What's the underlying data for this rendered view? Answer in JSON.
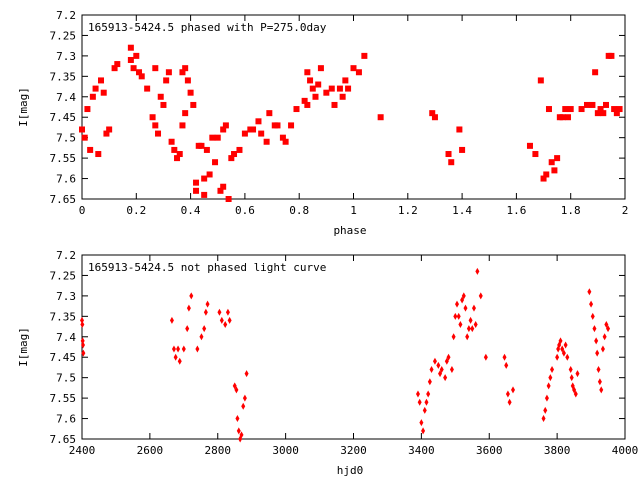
{
  "chart_data": [
    {
      "type": "scatter",
      "title": "165913-5424.5 phased with P=275.0day",
      "xlabel": "phase",
      "ylabel": "I[mag]",
      "xlim": [
        0,
        2
      ],
      "ylim": [
        7.2,
        7.65
      ],
      "y_inverted": true,
      "grid": false,
      "marker": "square",
      "color": "#ff0000",
      "xticks": [
        "0",
        "0.2",
        "0.4",
        "0.6",
        "0.8",
        "1",
        "1.2",
        "1.4",
        "1.6",
        "1.8",
        "2"
      ],
      "yticks": [
        "7.2",
        "7.25",
        "7.3",
        "7.35",
        "7.4",
        "7.45",
        "7.5",
        "7.55",
        "7.6",
        "7.65"
      ],
      "points": [
        [
          0.0,
          7.48
        ],
        [
          0.01,
          7.5
        ],
        [
          0.02,
          7.43
        ],
        [
          0.03,
          7.53
        ],
        [
          0.04,
          7.4
        ],
        [
          0.05,
          7.38
        ],
        [
          0.06,
          7.54
        ],
        [
          0.07,
          7.36
        ],
        [
          0.08,
          7.39
        ],
        [
          0.09,
          7.49
        ],
        [
          0.1,
          7.48
        ],
        [
          0.12,
          7.33
        ],
        [
          0.13,
          7.32
        ],
        [
          0.18,
          7.28
        ],
        [
          0.18,
          7.31
        ],
        [
          0.19,
          7.33
        ],
        [
          0.2,
          7.3
        ],
        [
          0.21,
          7.34
        ],
        [
          0.22,
          7.35
        ],
        [
          0.24,
          7.38
        ],
        [
          0.26,
          7.45
        ],
        [
          0.27,
          7.33
        ],
        [
          0.27,
          7.47
        ],
        [
          0.28,
          7.49
        ],
        [
          0.29,
          7.4
        ],
        [
          0.3,
          7.42
        ],
        [
          0.31,
          7.36
        ],
        [
          0.32,
          7.34
        ],
        [
          0.33,
          7.51
        ],
        [
          0.34,
          7.53
        ],
        [
          0.35,
          7.55
        ],
        [
          0.36,
          7.54
        ],
        [
          0.37,
          7.47
        ],
        [
          0.37,
          7.34
        ],
        [
          0.38,
          7.33
        ],
        [
          0.38,
          7.44
        ],
        [
          0.39,
          7.36
        ],
        [
          0.4,
          7.39
        ],
        [
          0.41,
          7.42
        ],
        [
          0.42,
          7.61
        ],
        [
          0.42,
          7.63
        ],
        [
          0.43,
          7.52
        ],
        [
          0.44,
          7.52
        ],
        [
          0.45,
          7.6
        ],
        [
          0.45,
          7.64
        ],
        [
          0.46,
          7.53
        ],
        [
          0.47,
          7.59
        ],
        [
          0.48,
          7.5
        ],
        [
          0.49,
          7.56
        ],
        [
          0.5,
          7.5
        ],
        [
          0.51,
          7.63
        ],
        [
          0.52,
          7.48
        ],
        [
          0.52,
          7.62
        ],
        [
          0.53,
          7.47
        ],
        [
          0.54,
          7.65
        ],
        [
          0.55,
          7.55
        ],
        [
          0.56,
          7.54
        ],
        [
          0.58,
          7.53
        ],
        [
          0.6,
          7.49
        ],
        [
          0.62,
          7.48
        ],
        [
          0.63,
          7.48
        ],
        [
          0.65,
          7.46
        ],
        [
          0.66,
          7.49
        ],
        [
          0.68,
          7.51
        ],
        [
          0.69,
          7.44
        ],
        [
          0.71,
          7.47
        ],
        [
          0.72,
          7.47
        ],
        [
          0.74,
          7.5
        ],
        [
          0.75,
          7.51
        ],
        [
          0.77,
          7.47
        ],
        [
          0.79,
          7.43
        ],
        [
          0.82,
          7.41
        ],
        [
          0.83,
          7.34
        ],
        [
          0.83,
          7.42
        ],
        [
          0.84,
          7.36
        ],
        [
          0.85,
          7.38
        ],
        [
          0.86,
          7.4
        ],
        [
          0.87,
          7.37
        ],
        [
          0.88,
          7.33
        ],
        [
          0.9,
          7.39
        ],
        [
          0.92,
          7.38
        ],
        [
          0.93,
          7.42
        ],
        [
          0.95,
          7.38
        ],
        [
          0.96,
          7.4
        ],
        [
          0.97,
          7.36
        ],
        [
          0.98,
          7.38
        ],
        [
          1.0,
          7.33
        ],
        [
          1.02,
          7.34
        ],
        [
          1.04,
          7.3
        ],
        [
          1.1,
          7.45
        ],
        [
          1.29,
          7.44
        ],
        [
          1.3,
          7.45
        ],
        [
          1.35,
          7.54
        ],
        [
          1.36,
          7.56
        ],
        [
          1.39,
          7.48
        ],
        [
          1.4,
          7.53
        ],
        [
          1.65,
          7.52
        ],
        [
          1.67,
          7.54
        ],
        [
          1.69,
          7.36
        ],
        [
          1.7,
          7.6
        ],
        [
          1.71,
          7.59
        ],
        [
          1.72,
          7.43
        ],
        [
          1.73,
          7.56
        ],
        [
          1.74,
          7.58
        ],
        [
          1.75,
          7.55
        ],
        [
          1.76,
          7.45
        ],
        [
          1.77,
          7.45
        ],
        [
          1.78,
          7.43
        ],
        [
          1.79,
          7.45
        ],
        [
          1.8,
          7.43
        ],
        [
          1.84,
          7.43
        ],
        [
          1.86,
          7.42
        ],
        [
          1.88,
          7.42
        ],
        [
          1.89,
          7.34
        ],
        [
          1.9,
          7.44
        ],
        [
          1.91,
          7.43
        ],
        [
          1.92,
          7.44
        ],
        [
          1.93,
          7.42
        ],
        [
          1.94,
          7.3
        ],
        [
          1.95,
          7.3
        ],
        [
          1.96,
          7.43
        ],
        [
          1.97,
          7.44
        ],
        [
          1.98,
          7.43
        ]
      ]
    },
    {
      "type": "scatter",
      "title": "165913-5424.5 not phased light curve",
      "xlabel": "hjd0",
      "ylabel": "I[mag]",
      "xlim": [
        2400,
        4000
      ],
      "ylim": [
        7.2,
        7.65
      ],
      "y_inverted": true,
      "grid": false,
      "marker": "diamond",
      "color": "#ff0000",
      "xticks": [
        "2400",
        "2600",
        "2800",
        "3000",
        "3200",
        "3400",
        "3600",
        "3800",
        "4000"
      ],
      "yticks": [
        "7.2",
        "7.25",
        "7.3",
        "7.35",
        "7.4",
        "7.45",
        "7.5",
        "7.55",
        "7.6",
        "7.65"
      ],
      "points": [
        [
          2400,
          7.36
        ],
        [
          2401,
          7.37
        ],
        [
          2402,
          7.41
        ],
        [
          2403,
          7.42
        ],
        [
          2404,
          7.44
        ],
        [
          2665,
          7.36
        ],
        [
          2671,
          7.43
        ],
        [
          2676,
          7.45
        ],
        [
          2683,
          7.43
        ],
        [
          2688,
          7.46
        ],
        [
          2700,
          7.43
        ],
        [
          2710,
          7.38
        ],
        [
          2715,
          7.33
        ],
        [
          2722,
          7.3
        ],
        [
          2740,
          7.43
        ],
        [
          2752,
          7.4
        ],
        [
          2760,
          7.38
        ],
        [
          2765,
          7.34
        ],
        [
          2770,
          7.32
        ],
        [
          2805,
          7.34
        ],
        [
          2812,
          7.36
        ],
        [
          2822,
          7.37
        ],
        [
          2830,
          7.34
        ],
        [
          2835,
          7.36
        ],
        [
          2850,
          7.52
        ],
        [
          2855,
          7.53
        ],
        [
          2858,
          7.6
        ],
        [
          2862,
          7.63
        ],
        [
          2866,
          7.65
        ],
        [
          2870,
          7.64
        ],
        [
          2875,
          7.57
        ],
        [
          2880,
          7.55
        ],
        [
          2885,
          7.49
        ],
        [
          3390,
          7.54
        ],
        [
          3395,
          7.56
        ],
        [
          3400,
          7.61
        ],
        [
          3405,
          7.63
        ],
        [
          3410,
          7.58
        ],
        [
          3415,
          7.56
        ],
        [
          3420,
          7.54
        ],
        [
          3425,
          7.51
        ],
        [
          3430,
          7.48
        ],
        [
          3440,
          7.46
        ],
        [
          3450,
          7.47
        ],
        [
          3455,
          7.49
        ],
        [
          3460,
          7.48
        ],
        [
          3470,
          7.5
        ],
        [
          3475,
          7.46
        ],
        [
          3480,
          7.45
        ],
        [
          3490,
          7.48
        ],
        [
          3495,
          7.4
        ],
        [
          3500,
          7.35
        ],
        [
          3505,
          7.32
        ],
        [
          3510,
          7.35
        ],
        [
          3515,
          7.37
        ],
        [
          3520,
          7.31
        ],
        [
          3525,
          7.3
        ],
        [
          3530,
          7.33
        ],
        [
          3535,
          7.4
        ],
        [
          3540,
          7.38
        ],
        [
          3545,
          7.36
        ],
        [
          3550,
          7.38
        ],
        [
          3555,
          7.33
        ],
        [
          3560,
          7.37
        ],
        [
          3565,
          7.24
        ],
        [
          3575,
          7.3
        ],
        [
          3590,
          7.45
        ],
        [
          3645,
          7.45
        ],
        [
          3650,
          7.47
        ],
        [
          3655,
          7.54
        ],
        [
          3660,
          7.56
        ],
        [
          3670,
          7.53
        ],
        [
          3760,
          7.6
        ],
        [
          3765,
          7.58
        ],
        [
          3770,
          7.55
        ],
        [
          3775,
          7.52
        ],
        [
          3780,
          7.5
        ],
        [
          3785,
          7.48
        ],
        [
          3800,
          7.45
        ],
        [
          3803,
          7.43
        ],
        [
          3806,
          7.42
        ],
        [
          3810,
          7.41
        ],
        [
          3815,
          7.43
        ],
        [
          3820,
          7.44
        ],
        [
          3825,
          7.42
        ],
        [
          3830,
          7.45
        ],
        [
          3840,
          7.48
        ],
        [
          3843,
          7.5
        ],
        [
          3846,
          7.52
        ],
        [
          3850,
          7.53
        ],
        [
          3855,
          7.54
        ],
        [
          3860,
          7.49
        ],
        [
          3895,
          7.29
        ],
        [
          3900,
          7.32
        ],
        [
          3905,
          7.35
        ],
        [
          3910,
          7.38
        ],
        [
          3915,
          7.41
        ],
        [
          3918,
          7.44
        ],
        [
          3922,
          7.48
        ],
        [
          3926,
          7.51
        ],
        [
          3930,
          7.53
        ],
        [
          3935,
          7.43
        ],
        [
          3940,
          7.4
        ],
        [
          3945,
          7.37
        ],
        [
          3950,
          7.38
        ]
      ]
    }
  ]
}
